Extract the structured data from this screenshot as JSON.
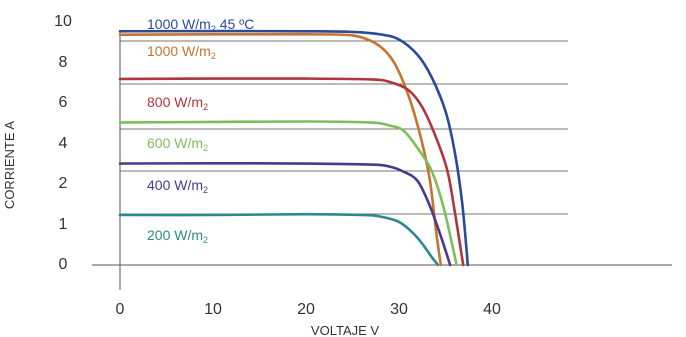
{
  "chart_data": {
    "type": "line",
    "xlabel": "VOLTAJE  V",
    "ylabel": "CORRIENTE A",
    "x_ticks": [
      "0",
      "10",
      "20",
      "30",
      "40"
    ],
    "y_ticks": [
      "0",
      "1",
      "2",
      "4",
      "6",
      "8",
      "10"
    ],
    "xlim": [
      0,
      47
    ],
    "series": [
      {
        "name_main": "1000 W/m",
        "name_sub": "2",
        "name_tail": " 45 ºC",
        "color": "#2b4a9b",
        "points": [
          [
            0,
            9.45
          ],
          [
            10,
            9.46
          ],
          [
            20,
            9.45
          ],
          [
            25,
            9.42
          ],
          [
            28,
            9.3
          ],
          [
            30,
            9.05
          ],
          [
            32,
            8.3
          ],
          [
            33.5,
            7.2
          ],
          [
            35,
            5.5
          ],
          [
            36,
            3.5
          ],
          [
            36.8,
            1.5
          ],
          [
            37.4,
            0
          ]
        ]
      },
      {
        "name_main": "1000 W/m",
        "name_sub": "2",
        "name_tail": "",
        "color": "#c8732f",
        "points": [
          [
            0,
            9.28
          ],
          [
            10,
            9.3
          ],
          [
            20,
            9.3
          ],
          [
            24,
            9.28
          ],
          [
            26,
            9.15
          ],
          [
            28,
            8.7
          ],
          [
            29.5,
            7.9
          ],
          [
            31,
            6.3
          ],
          [
            32.3,
            4.3
          ],
          [
            33.3,
            2.2
          ],
          [
            34,
            0.8
          ],
          [
            34.5,
            0
          ]
        ]
      },
      {
        "name_main": "800 W/m",
        "name_sub": "2",
        "name_tail": "",
        "color": "#b2343f",
        "points": [
          [
            0,
            7.1
          ],
          [
            10,
            7.12
          ],
          [
            20,
            7.12
          ],
          [
            27,
            7.08
          ],
          [
            29,
            6.95
          ],
          [
            31,
            6.55
          ],
          [
            32.5,
            5.7
          ],
          [
            34,
            4.2
          ],
          [
            35.2,
            2.6
          ],
          [
            36,
            1.3
          ],
          [
            36.9,
            0
          ]
        ]
      },
      {
        "name_main": "600 W/m",
        "name_sub": "2",
        "name_tail": "",
        "color": "#7cbf57",
        "points": [
          [
            0,
            4.95
          ],
          [
            10,
            4.98
          ],
          [
            20,
            5.0
          ],
          [
            27,
            4.95
          ],
          [
            29,
            4.8
          ],
          [
            30.5,
            4.55
          ],
          [
            32,
            3.7
          ],
          [
            33.5,
            2.6
          ],
          [
            34.8,
            1.4
          ],
          [
            36.2,
            0
          ]
        ]
      },
      {
        "name_main": "400 W/m",
        "name_sub": "2",
        "name_tail": "",
        "color": "#4a3a8c",
        "points": [
          [
            0,
            2.95
          ],
          [
            10,
            2.96
          ],
          [
            20,
            2.95
          ],
          [
            27,
            2.9
          ],
          [
            29,
            2.8
          ],
          [
            30.5,
            2.55
          ],
          [
            32,
            2.1
          ],
          [
            33.3,
            1.45
          ],
          [
            34.5,
            0.7
          ],
          [
            35.5,
            0
          ]
        ]
      },
      {
        "name_main": "200 W/m",
        "name_sub": "2",
        "name_tail": "",
        "color": "#2a8a8f",
        "points": [
          [
            0,
            1.22
          ],
          [
            10,
            1.22
          ],
          [
            20,
            1.24
          ],
          [
            26,
            1.22
          ],
          [
            28,
            1.18
          ],
          [
            30,
            1.05
          ],
          [
            31.5,
            0.78
          ],
          [
            32.5,
            0.52
          ],
          [
            33.5,
            0.2
          ],
          [
            34.2,
            0
          ]
        ]
      }
    ]
  }
}
